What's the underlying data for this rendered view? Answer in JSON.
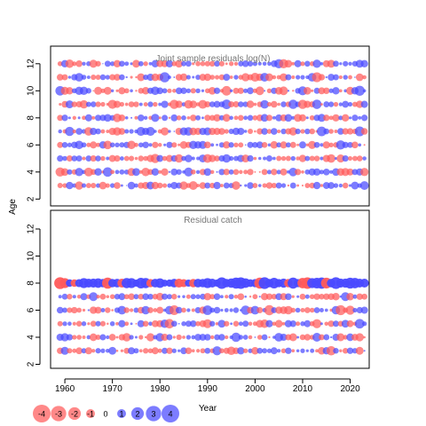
{
  "chart_data": [
    {
      "type": "scatter",
      "panel": "top",
      "title": "Joint sample residuals log(N)",
      "xlabel": "",
      "ylabel": "Age",
      "xlim": [
        1957,
        2024
      ],
      "ylim": [
        1.5,
        13.5
      ],
      "yticks": [
        2,
        4,
        6,
        8,
        10,
        12
      ],
      "ages": [
        3,
        4,
        5,
        6,
        7,
        8,
        9,
        10,
        11,
        12
      ],
      "years": [
        1959,
        2023
      ],
      "encoding": "bubble area ~ |residual|; red = negative, blue = positive",
      "colors": {
        "negative": "#ff5a5a",
        "positive": "#4a4aff"
      }
    },
    {
      "type": "scatter",
      "panel": "bottom",
      "title": "Residual catch",
      "xlabel": "Year",
      "ylabel": "",
      "xlim": [
        1957,
        2024
      ],
      "ylim": [
        1.5,
        13.5
      ],
      "xticks": [
        1960,
        1970,
        1980,
        1990,
        2000,
        2010,
        2020
      ],
      "yticks": [
        2,
        4,
        6,
        8,
        10,
        12
      ],
      "ages": [
        3,
        4,
        5,
        6,
        7,
        8
      ],
      "years": [
        1959,
        2023
      ],
      "encoding": "bubble area ~ |residual|; red = negative, blue = positive",
      "colors": {
        "negative": "#ff5a5a",
        "positive": "#4a4aff"
      }
    }
  ],
  "legend": {
    "values": [
      -4,
      -3,
      -2,
      -1,
      0,
      1,
      2,
      3,
      4
    ],
    "labels": [
      "-4",
      "-3",
      "-2",
      "-1",
      "0",
      "1",
      "2",
      "3",
      "4"
    ]
  },
  "labels": {
    "ylabel": "Age",
    "xlabel": "Year",
    "top_title": "Joint sample residuals log(N)",
    "bottom_title": "Residual catch"
  }
}
